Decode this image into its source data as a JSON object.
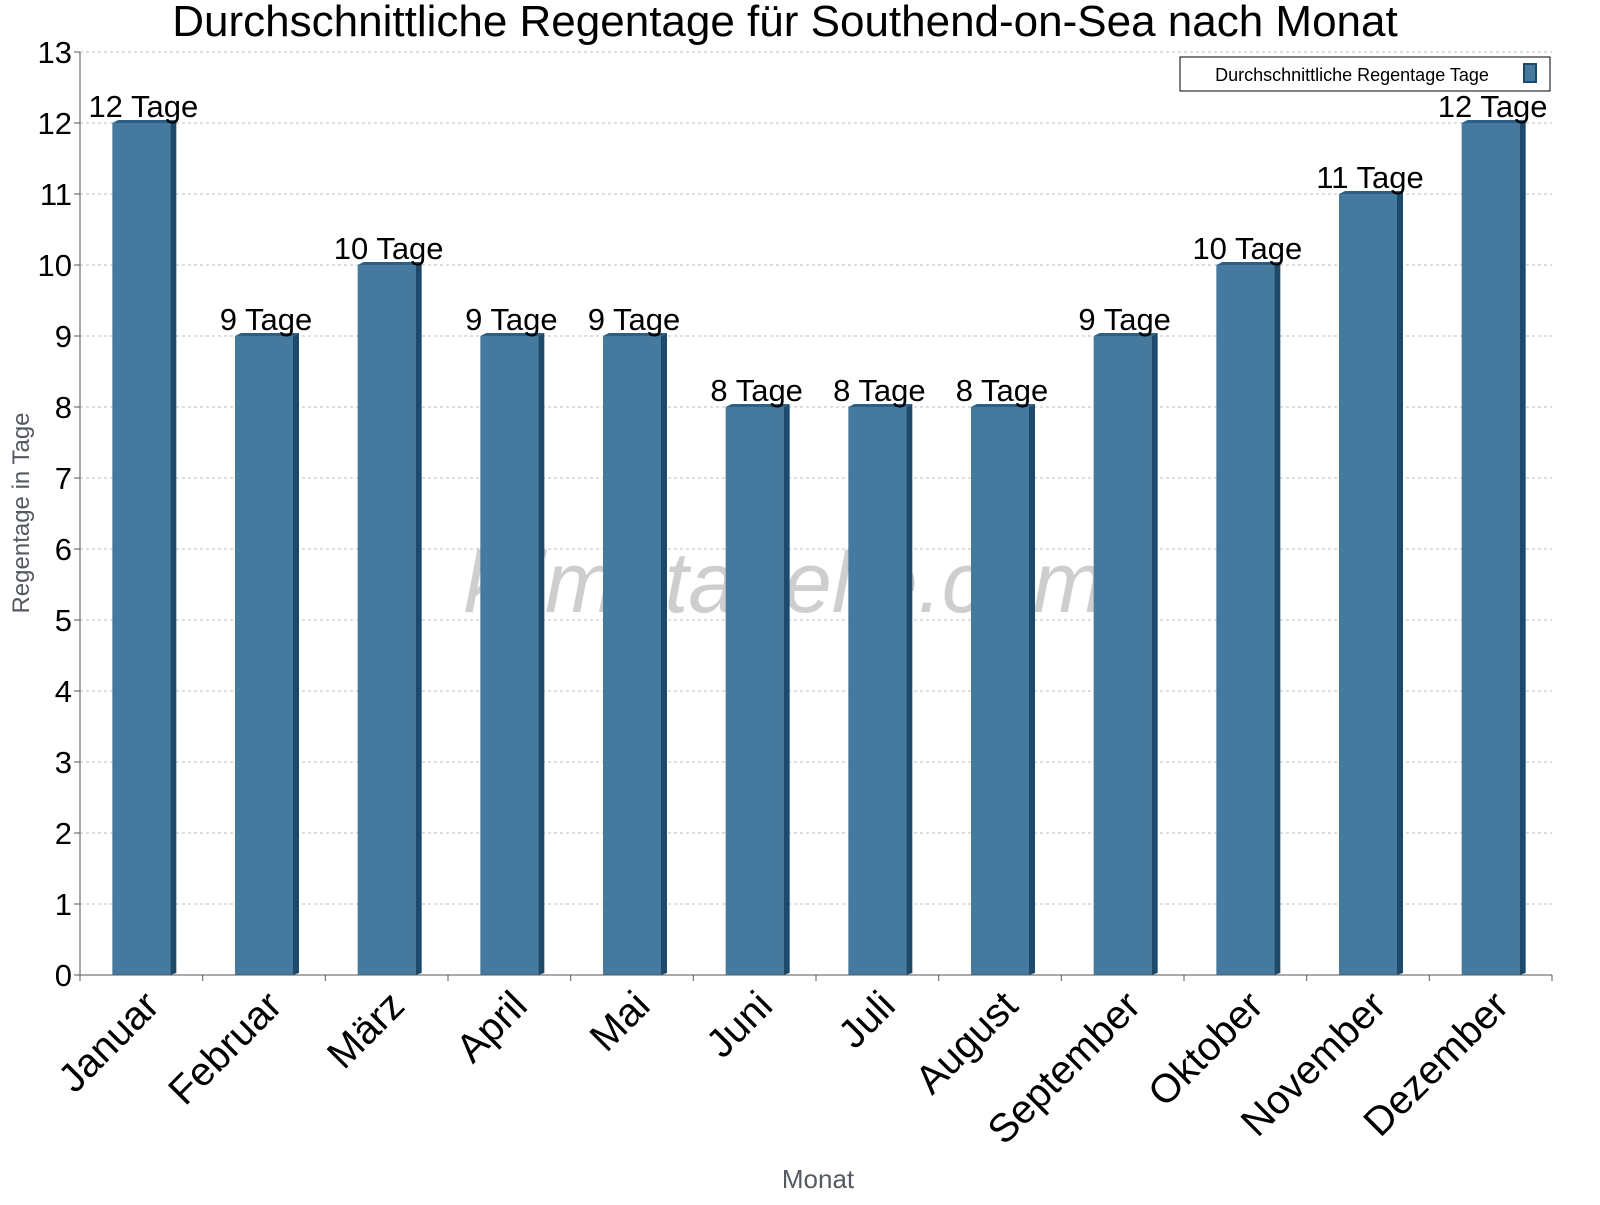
{
  "chart_data": {
    "type": "bar",
    "title": "Durchschnittliche Regentage für Southend-on-Sea nach Monat",
    "xlabel": "Monat",
    "ylabel": "Regentage in Tage",
    "ylim": [
      0,
      13
    ],
    "yticks": [
      "0",
      "1",
      "2",
      "3",
      "4",
      "5",
      "6",
      "7",
      "8",
      "9",
      "10",
      "11",
      "12",
      "13"
    ],
    "grid": true,
    "legend": {
      "position": "top-right",
      "entries": [
        "Durchschnittliche Regentage Tage"
      ]
    },
    "categories": [
      "Januar",
      "Februar",
      "März",
      "April",
      "Mai",
      "Juni",
      "Juli",
      "August",
      "September",
      "Oktober",
      "November",
      "Dezember"
    ],
    "series": [
      {
        "name": "Durchschnittliche Regentage Tage",
        "values": [
          12,
          9,
          10,
          9,
          9,
          8,
          8,
          8,
          9,
          10,
          11,
          12
        ],
        "data_labels": [
          "12 Tage",
          "9 Tage",
          "10 Tage",
          "9 Tage",
          "9 Tage",
          "8 Tage",
          "8 Tage",
          "8 Tage",
          "9 Tage",
          "10 Tage",
          "11 Tage",
          "12 Tage"
        ]
      }
    ],
    "colors": {
      "bar_face": "#457a9e",
      "bar_side": "#1d4a6b",
      "bar_top": "#2c5f83",
      "grid": "#bdbdbd",
      "axis": "#555555",
      "axis_title": "#555a61",
      "watermark": "#c9c9c9"
    }
  },
  "watermark": "klimatabelle.com"
}
